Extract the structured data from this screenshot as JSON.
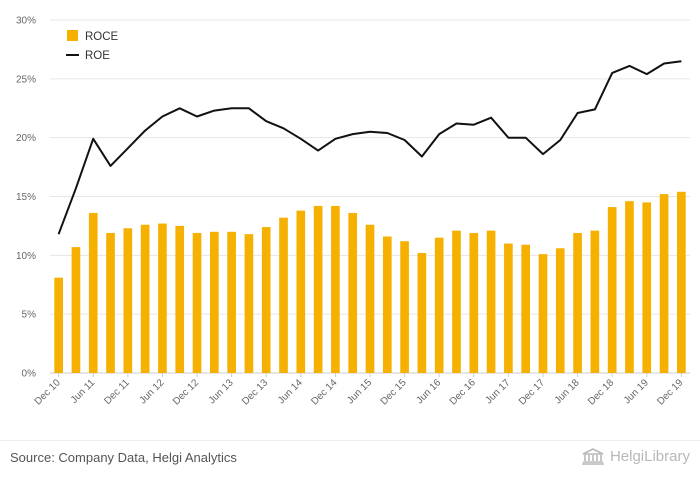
{
  "chart_data": {
    "type": "bar+line",
    "categories": [
      "Dec 10",
      "Mar 11",
      "Jun 11",
      "Sep 11",
      "Dec 11",
      "Mar 12",
      "Jun 12",
      "Sep 12",
      "Dec 12",
      "Mar 13",
      "Jun 13",
      "Sep 13",
      "Dec 13",
      "Mar 14",
      "Jun 14",
      "Sep 14",
      "Dec 14",
      "Mar 15",
      "Jun 15",
      "Sep 15",
      "Dec 15",
      "Mar 16",
      "Jun 16",
      "Sep 16",
      "Dec 16",
      "Mar 17",
      "Jun 17",
      "Sep 17",
      "Dec 17",
      "Mar 18",
      "Jun 18",
      "Sep 18",
      "Dec 18",
      "Mar 19",
      "Jun 19",
      "Sep 19",
      "Dec 19"
    ],
    "x_tick_labels": [
      "Dec 10",
      "Jun 11",
      "Dec 11",
      "Jun 12",
      "Dec 12",
      "Jun 13",
      "Dec 13",
      "Jun 14",
      "Dec 14",
      "Jun 15",
      "Dec 15",
      "Jun 16",
      "Dec 16",
      "Jun 17",
      "Dec 17",
      "Jun 18",
      "Dec 18",
      "Jun 19",
      "Dec 19"
    ],
    "series": [
      {
        "name": "ROCE",
        "kind": "bar",
        "color": "#F5B000",
        "values": [
          8.1,
          10.7,
          13.6,
          11.9,
          12.3,
          12.6,
          12.7,
          12.5,
          11.9,
          12.0,
          12.0,
          11.8,
          12.4,
          13.2,
          13.8,
          14.2,
          14.2,
          13.6,
          12.6,
          11.6,
          11.2,
          10.2,
          11.5,
          12.1,
          11.9,
          12.1,
          11.0,
          10.9,
          10.1,
          10.6,
          11.9,
          12.1,
          14.1,
          14.6,
          14.5,
          15.2,
          15.4
        ]
      },
      {
        "name": "ROE",
        "kind": "line",
        "color": "#111111",
        "values": [
          11.8,
          15.7,
          19.9,
          17.6,
          19.1,
          20.6,
          21.8,
          22.5,
          21.8,
          22.3,
          22.5,
          22.5,
          21.4,
          20.8,
          19.9,
          18.9,
          19.9,
          20.3,
          20.5,
          20.4,
          19.8,
          18.4,
          20.3,
          21.2,
          21.1,
          21.7,
          20.0,
          20.0,
          18.6,
          19.8,
          22.1,
          22.4,
          25.5,
          26.1,
          25.4,
          26.3,
          26.5
        ]
      }
    ],
    "y_ticks": [
      "0%",
      "5%",
      "10%",
      "15%",
      "20%",
      "25%",
      "30%"
    ],
    "ylim": [
      0,
      30
    ],
    "grid": true,
    "legend_position": "top-left"
  },
  "footer": {
    "source": "Source: Company Data, Helgi Analytics",
    "brand": "HelgiLibrary"
  }
}
